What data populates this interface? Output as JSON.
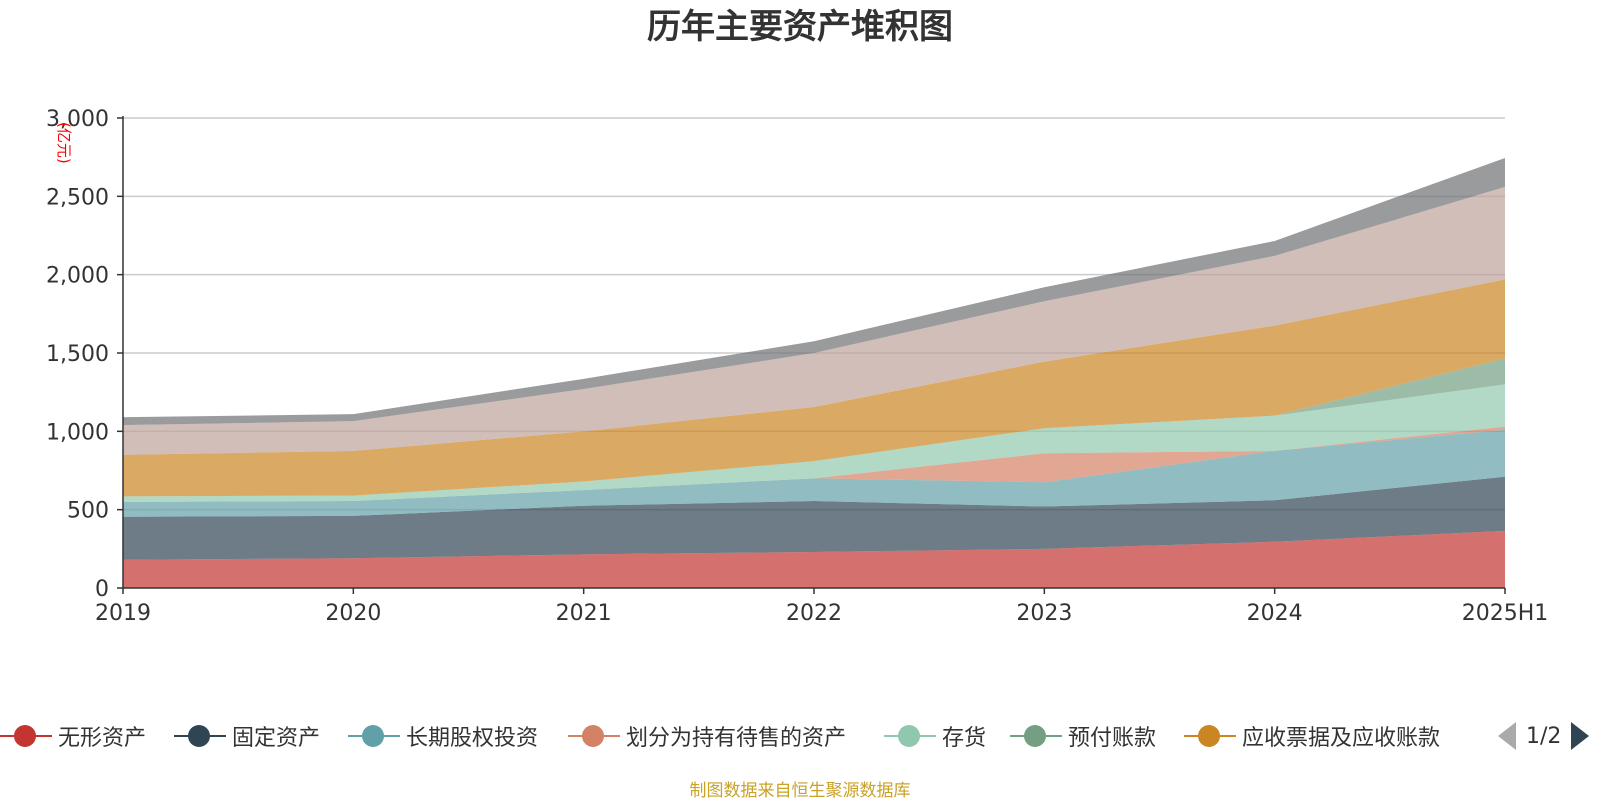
{
  "title": "历年主要资产堆积图",
  "unit_label": "(亿元)",
  "source": "制图数据来自恒生聚源数据库",
  "legend": {
    "items": [
      {
        "label": "无形资产",
        "color": "#c23531"
      },
      {
        "label": "固定资产",
        "color": "#2f4554"
      },
      {
        "label": "长期股权投资",
        "color": "#61a0a8"
      },
      {
        "label": "划分为持有待售的资产",
        "color": "#d48265"
      },
      {
        "label": "存货",
        "color": "#91c7ae"
      },
      {
        "label": "预付账款",
        "color": "#749f83"
      },
      {
        "label": "应收票据及应收账款",
        "color": "#ca8622"
      }
    ],
    "page": "1/2"
  },
  "chart_data": {
    "type": "area",
    "stacked": true,
    "categories": [
      "2019",
      "2020",
      "2021",
      "2022",
      "2023",
      "2024",
      "2025H1"
    ],
    "ylim": [
      0,
      3000
    ],
    "yticks": [
      "0",
      "500",
      "1,000",
      "1,500",
      "2,000",
      "2,500",
      "3,000"
    ],
    "ytick_values": [
      0,
      500,
      1000,
      1500,
      2000,
      2500,
      3000
    ],
    "grid": true,
    "series": [
      {
        "name": "无形资产",
        "color": "#c23531",
        "values": [
          180,
          190,
          215,
          230,
          250,
          295,
          365
        ]
      },
      {
        "name": "固定资产",
        "color": "#2f4554",
        "values": [
          275,
          270,
          310,
          325,
          270,
          265,
          345
        ]
      },
      {
        "name": "长期股权投资",
        "color": "#61a0a8",
        "values": [
          95,
          95,
          100,
          145,
          155,
          315,
          300
        ]
      },
      {
        "name": "划分为持有待售的资产",
        "color": "#d48265",
        "values": [
          0,
          0,
          0,
          0,
          185,
          0,
          20
        ]
      },
      {
        "name": "存货",
        "color": "#91c7ae",
        "values": [
          35,
          35,
          55,
          110,
          160,
          225,
          270
        ]
      },
      {
        "name": "预付账款",
        "color": "#749f83",
        "values": [
          0,
          0,
          0,
          0,
          0,
          0,
          165
        ]
      },
      {
        "name": "应收票据及应收账款",
        "color": "#ca8622",
        "values": [
          265,
          285,
          320,
          345,
          425,
          575,
          505
        ]
      },
      {
        "color": "#bda29a",
        "values": [
          190,
          190,
          270,
          345,
          385,
          445,
          590
        ]
      },
      {
        "color": "#6e7074",
        "values": [
          50,
          45,
          65,
          75,
          90,
          95,
          185
        ]
      }
    ]
  }
}
